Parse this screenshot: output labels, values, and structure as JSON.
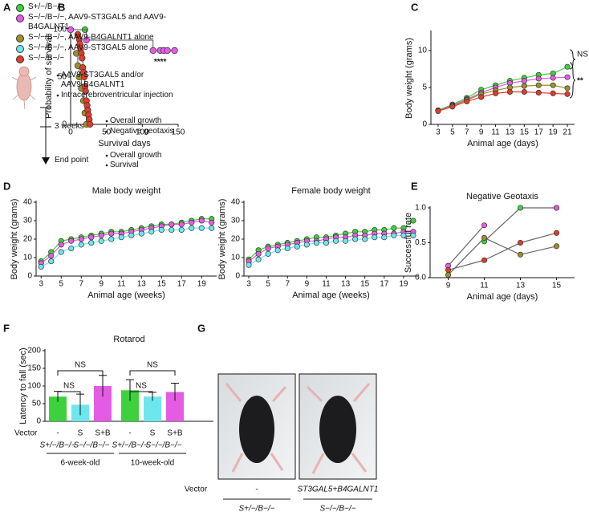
{
  "panel_labels": [
    "A",
    "B",
    "C",
    "D",
    "E",
    "F",
    "G"
  ],
  "legend": [
    {
      "label": "S+/−/B−/−",
      "color": "#3ed13e"
    },
    {
      "label": "S−/−/B−/−, AAV9-ST3GAL5 and AAV9-B4GALNT1",
      "color": "#e45ce4"
    },
    {
      "label": "S−/−/B−/−, AAV9-B4GALNT1 alone",
      "color": "#9c8f2c"
    },
    {
      "label": "S−/−/B−/−, AAV9-ST3GAL5 alone",
      "color": "#6ee6ee"
    },
    {
      "label": "S−/−/B−/−",
      "color": "#e23b2b"
    }
  ],
  "diagram": {
    "treatment": [
      "AAV9-ST3GAL5 and/or AAV9-B4GALNT1",
      "Intracerebroventricular injection"
    ],
    "timepoint_1": "3 weeks",
    "timepoint_1_items": [
      "Overall growth",
      "Negative geotaxis"
    ],
    "timepoint_2": "End point",
    "timepoint_2_items": [
      "Overall growth",
      "Survival"
    ]
  },
  "chart_data": [
    {
      "type": "line",
      "drawstyle": "steps-post",
      "xlabel": "Survival days",
      "ylabel": "Probability of survival",
      "xlim": [
        0,
        150
      ],
      "xticks": [
        0,
        50,
        100,
        150
      ],
      "ylim": [
        0,
        100
      ],
      "yticks": [
        0,
        50,
        100
      ],
      "line_color": "#555555",
      "annotation": "****",
      "series": [
        {
          "color": "#3ed13e",
          "x": [
            0,
            20
          ],
          "values": [
            100,
            100
          ]
        },
        {
          "color": "#e45ce4",
          "x": [
            0,
            22,
            115,
            125,
            130,
            135,
            145
          ],
          "values": [
            100,
            89,
            78,
            78,
            78,
            78,
            78
          ]
        },
        {
          "color": "#9c8f2c",
          "x": [
            8,
            10,
            12,
            15,
            18,
            20,
            22
          ],
          "values": [
            75,
            62,
            50,
            38,
            25,
            12,
            0
          ]
        },
        {
          "color": "#e23b2b",
          "x": [
            10,
            12,
            13,
            14,
            15,
            16,
            17,
            18,
            19,
            20,
            21,
            22,
            23,
            24,
            25,
            26,
            27
          ],
          "values": [
            95,
            90,
            85,
            80,
            75,
            70,
            60,
            55,
            50,
            40,
            35,
            25,
            20,
            15,
            10,
            5,
            0
          ]
        }
      ]
    },
    {
      "type": "line",
      "xlabel": "Animal age (days)",
      "ylabel": "Body weight (grams)",
      "x": [
        3,
        5,
        7,
        9,
        11,
        13,
        15,
        17,
        19,
        21
      ],
      "xlim": [
        2,
        22
      ],
      "xticks": [
        3,
        5,
        7,
        9,
        11,
        13,
        15,
        17,
        19,
        21
      ],
      "ylim": [
        0,
        12.5
      ],
      "yticks": [
        0,
        5,
        10
      ],
      "annotations": [
        "NS",
        "**"
      ],
      "series": [
        {
          "color": "#3ed13e",
          "values": [
            1.9,
            2.7,
            3.6,
            4.7,
            5.3,
            5.9,
            6.3,
            6.7,
            6.9,
            7.8
          ]
        },
        {
          "color": "#e45ce4",
          "values": [
            1.9,
            2.6,
            3.4,
            4.3,
            5.0,
            5.6,
            5.9,
            6.2,
            6.3,
            6.4
          ]
        },
        {
          "color": "#9c8f2c",
          "values": [
            1.9,
            2.5,
            3.3,
            4.1,
            4.6,
            5.0,
            5.2,
            5.3,
            5.3,
            4.9
          ]
        },
        {
          "color": "#e23b2b",
          "values": [
            1.8,
            2.4,
            3.1,
            3.7,
            4.2,
            4.4,
            4.4,
            4.3,
            4.2,
            4.1
          ]
        }
      ]
    },
    {
      "type": "line",
      "title": "Male body weight",
      "xlabel": "Animal age (weeks)",
      "ylabel": "Body weight (grams)",
      "x": [
        3,
        4,
        5,
        6,
        7,
        8,
        9,
        10,
        11,
        12,
        13,
        14,
        15,
        16,
        17,
        18,
        19,
        20
      ],
      "xlim": [
        2.5,
        20.5
      ],
      "xticks": [
        3,
        5,
        7,
        9,
        11,
        13,
        15,
        17,
        19
      ],
      "ylim": [
        0,
        40
      ],
      "yticks": [
        0,
        10,
        20,
        30,
        40
      ],
      "series": [
        {
          "color": "#3ed13e",
          "values": [
            8,
            13,
            19,
            20,
            21,
            22,
            23,
            24,
            24,
            25,
            26,
            27,
            28,
            28,
            29,
            30,
            31,
            31
          ]
        },
        {
          "color": "#e45ce4",
          "values": [
            7,
            11,
            17,
            19,
            20,
            21,
            22,
            23,
            23,
            24,
            25,
            26,
            27,
            28,
            28,
            29,
            30,
            29
          ]
        },
        {
          "color": "#6ee6ee",
          "values": [
            5,
            8,
            13,
            15,
            17,
            18,
            19,
            20,
            21,
            22,
            23,
            24,
            25,
            25,
            25,
            26,
            26,
            26
          ]
        }
      ]
    },
    {
      "type": "line",
      "title": "Female body weight",
      "xlabel": "Animal age (weeks)",
      "ylabel": "Body weight (grams)",
      "x": [
        3,
        4,
        5,
        6,
        7,
        8,
        9,
        10,
        11,
        12,
        13,
        14,
        15,
        16,
        17,
        18,
        19,
        20
      ],
      "xlim": [
        2.5,
        20.5
      ],
      "xticks": [
        3,
        5,
        7,
        9,
        11,
        13,
        15,
        17,
        19
      ],
      "ylim": [
        0,
        40
      ],
      "yticks": [
        0,
        10,
        20,
        30,
        40
      ],
      "series": [
        {
          "color": "#3ed13e",
          "values": [
            9,
            14,
            16,
            17,
            18,
            19,
            20,
            21,
            21,
            22,
            23,
            24,
            24,
            25,
            25,
            26,
            26,
            30
          ]
        },
        {
          "color": "#e45ce4",
          "values": [
            8,
            12,
            15,
            16,
            17,
            18,
            19,
            19,
            20,
            21,
            21,
            22,
            22,
            23,
            23,
            23,
            24,
            24
          ]
        },
        {
          "color": "#6ee6ee",
          "values": [
            6,
            9,
            12,
            14,
            15,
            16,
            17,
            18,
            18,
            19,
            19,
            20,
            20,
            21,
            21,
            22,
            22,
            22
          ]
        }
      ]
    },
    {
      "type": "line",
      "title": "Negative Geotaxis",
      "xlabel": "Animal age (days)",
      "ylabel": "Successful rate",
      "x": [
        9,
        11,
        13,
        15
      ],
      "xlim": [
        8,
        16
      ],
      "xticks": [
        9,
        11,
        13,
        15
      ],
      "ylim": [
        0,
        1
      ],
      "yticks": [
        {
          "value": 0,
          "label": "0.0"
        },
        {
          "value": 0.5,
          "label": "0.5"
        },
        {
          "value": 1,
          "label": "1.0"
        }
      ],
      "line_color": "#666666",
      "series": [
        {
          "color": "#3ed13e",
          "values": [
            null,
            0.52,
            1.0,
            1.0
          ]
        },
        {
          "color": "#e45ce4",
          "values": [
            0.17,
            0.75,
            null,
            1.0
          ]
        },
        {
          "color": "#9c8f2c",
          "values": [
            0.04,
            0.57,
            0.33,
            0.45
          ]
        },
        {
          "color": "#e23b2b",
          "values": [
            0.11,
            0.25,
            0.5,
            0.64
          ]
        }
      ]
    },
    {
      "type": "bar",
      "title": "Rotarod",
      "ylabel": "Latency to fall (sec)",
      "ylim": [
        0,
        200
      ],
      "yticks": [
        0,
        50,
        100,
        150,
        200
      ],
      "vector_label": "Vector",
      "categories": [
        "-",
        "S",
        "S+B",
        "-",
        "S",
        "S+B"
      ],
      "genotype_labels": [
        "S+/−/B−/−",
        "S−/−/B−/−",
        "S+/−/B−/−",
        "S−/−/B−/−"
      ],
      "groups": [
        "6-week-old",
        "10-week-old"
      ],
      "values": [
        70,
        47,
        100,
        88,
        70,
        83
      ],
      "errors": [
        15,
        30,
        30,
        30,
        12,
        25
      ],
      "colors": [
        "#3ed13e",
        "#6ee6ee",
        "#e45ce4",
        "#3ed13e",
        "#6ee6ee",
        "#e45ce4"
      ],
      "annotations": [
        "NS",
        "NS",
        "NS",
        "NS"
      ]
    }
  ],
  "photo_panel": {
    "vector_label": "Vector",
    "vectors": [
      "-",
      "ST3GAL5+B4GALNT1"
    ],
    "genotypes": [
      "S+/−/B−/−",
      "S−/−/B−/−"
    ]
  }
}
